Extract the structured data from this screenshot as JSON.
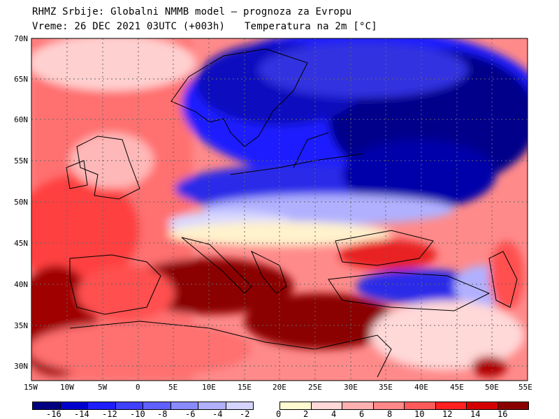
{
  "header": {
    "line1": "RHMZ Srbije: Globalni NMMB model – prognoza za Evropu",
    "line2_left": "Vreme: 26 DEC 2021 03UTC (+003h)",
    "line2_right": "Temperatura na 2m [°C]"
  },
  "map": {
    "lat_labels": [
      "70N",
      "65N",
      "60N",
      "55N",
      "50N",
      "45N",
      "40N",
      "35N",
      "30N"
    ],
    "lon_labels": [
      "15W",
      "10W",
      "5W",
      "0",
      "5E",
      "10E",
      "15E",
      "20E",
      "25E",
      "30E",
      "35E",
      "40E",
      "45E",
      "50E",
      "55E"
    ],
    "frame_color": "#000000",
    "grid_color": "#666666"
  },
  "colorbar": {
    "cold_colors": [
      "#000080",
      "#0000cd",
      "#1e1eff",
      "#4040ff",
      "#6060ff",
      "#8a8aff",
      "#b0b0ff",
      "#d4d4ff"
    ],
    "warm_colors": [
      "#fffbd0",
      "#ffd8d8",
      "#ffb0b0",
      "#ff8888",
      "#ff5a5a",
      "#ff2020",
      "#d40000",
      "#8b0000"
    ],
    "labels": [
      "-16",
      "-14",
      "-12",
      "-10",
      "-8",
      "-6",
      "-4",
      "-2",
      "0",
      "2",
      "4",
      "6",
      "8",
      "10",
      "12",
      "14",
      "16"
    ]
  }
}
